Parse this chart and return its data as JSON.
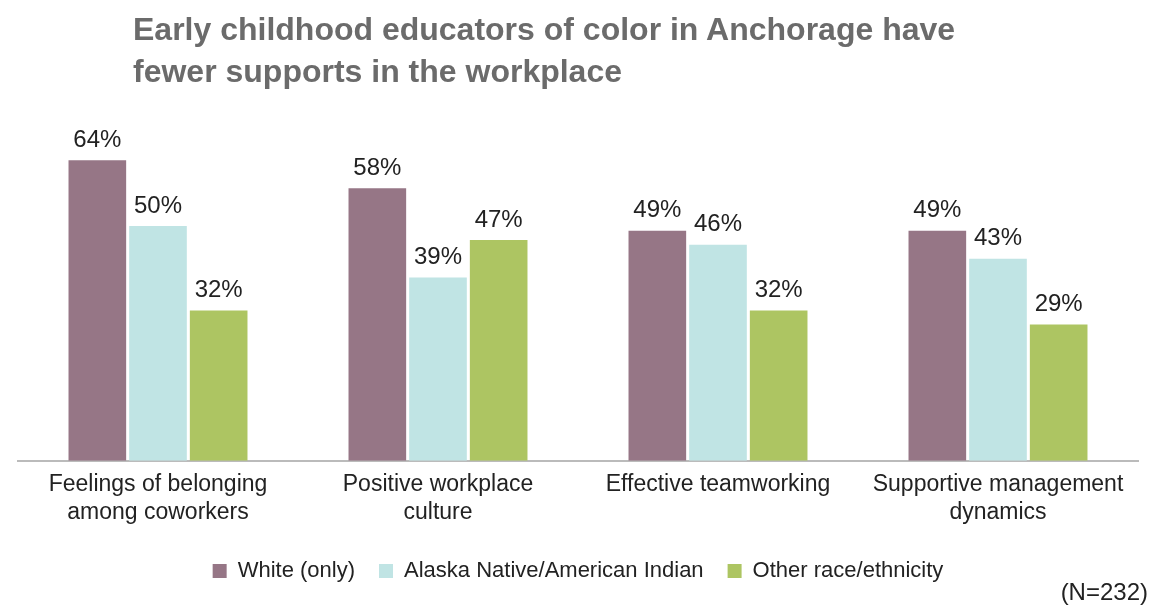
{
  "chart_data": {
    "type": "bar",
    "title": "Early childhood educators of color in Anchorage have fewer supports in the workplace",
    "categories": [
      "Feelings of belonging among coworkers",
      "Positive workplace culture",
      "Effective teamworking",
      "Supportive management dynamics"
    ],
    "series": [
      {
        "name": "White (only)",
        "color": "#967686",
        "values": [
          64,
          58,
          49,
          49
        ],
        "value_labels": [
          "64%",
          "58%",
          "49%",
          "49%"
        ]
      },
      {
        "name": "Alaska Native/American Indian",
        "color": "#c0e4e4",
        "values": [
          50,
          39,
          46,
          43
        ],
        "value_labels": [
          "50%",
          "39%",
          "46%",
          "43%"
        ]
      },
      {
        "name": "Other race/ethnicity",
        "color": "#adc562",
        "values": [
          32,
          47,
          32,
          29
        ],
        "value_labels": [
          "32%",
          "47%",
          "32%",
          "29%"
        ]
      }
    ],
    "legend": "bottom",
    "grid": false,
    "annotations": [
      "(N=232)"
    ]
  }
}
